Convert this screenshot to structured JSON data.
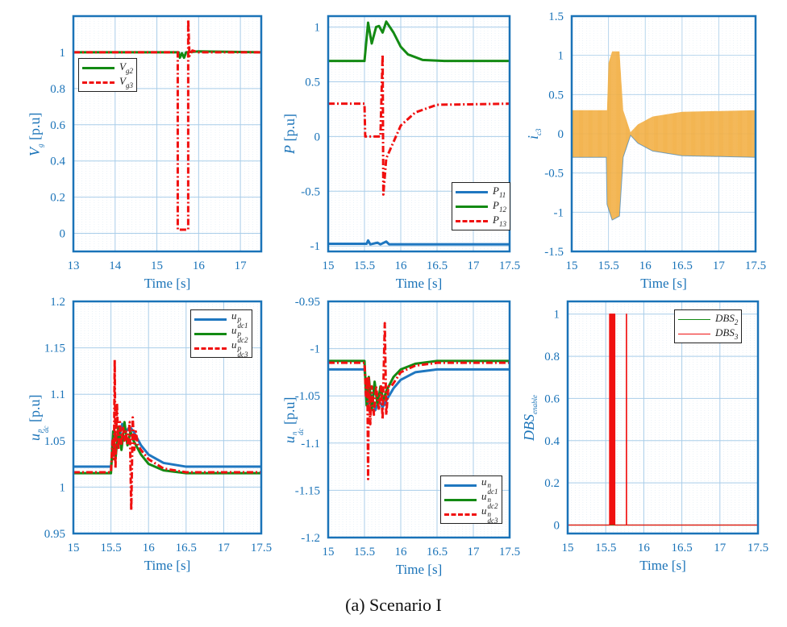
{
  "caption": "(a) Scenario I",
  "colors": {
    "axis": "#1a73b8",
    "grid": "#a9cde9",
    "blue": "#1f77c0",
    "green": "#138a13",
    "red": "#f01010",
    "orange": "#f0a020"
  },
  "chart_data": [
    {
      "type": "line",
      "xlabel": "Time [s]",
      "ylabel": {
        "base": "V",
        "sub": "g",
        "sup": "",
        "unit": " [p.u]"
      },
      "xlim": [
        13,
        17.5
      ],
      "ylim": [
        -0.1,
        1.2
      ],
      "xticks": [
        13,
        14,
        15,
        16,
        17
      ],
      "yticks": [
        0,
        0.2,
        0.4,
        0.6,
        0.8,
        1
      ],
      "grid": true,
      "legend": "upper-left",
      "series": [
        {
          "name": "V",
          "sub": "g2",
          "sup": "",
          "color": "#138a13",
          "style": "solid",
          "points": [
            [
              13,
              1
            ],
            [
              15.52,
              1
            ],
            [
              15.55,
              0.97
            ],
            [
              15.6,
              0.995
            ],
            [
              15.65,
              0.97
            ],
            [
              15.7,
              1
            ],
            [
              16,
              1.005
            ],
            [
              17.5,
              1
            ]
          ]
        },
        {
          "name": "V",
          "sub": "g3",
          "sup": "",
          "color": "#f01010",
          "style": "dashdot",
          "points": [
            [
              13,
              1
            ],
            [
              15.5,
              1
            ],
            [
              15.5,
              0.02
            ],
            [
              15.75,
              0.02
            ],
            [
              15.75,
              1.18
            ],
            [
              15.78,
              0.98
            ],
            [
              15.85,
              1.01
            ],
            [
              16,
              1
            ],
            [
              17.5,
              1
            ]
          ]
        }
      ]
    },
    {
      "type": "line",
      "xlabel": "Time [s]",
      "ylabel": {
        "base": "P",
        "sub": "",
        "sup": "",
        "unit": " [p.u]"
      },
      "xlim": [
        15,
        17.5
      ],
      "ylim": [
        -1.05,
        1.1
      ],
      "xticks": [
        15,
        15.5,
        16,
        16.5,
        17,
        17.5
      ],
      "yticks": [
        -1,
        -0.5,
        0,
        0.5,
        1
      ],
      "grid": true,
      "legend": "lower-right",
      "series": [
        {
          "name": "P",
          "sub": "11",
          "sup": "",
          "color": "#1f77c0",
          "style": "solid",
          "points": [
            [
              15,
              -0.98
            ],
            [
              15.53,
              -0.98
            ],
            [
              15.55,
              -0.95
            ],
            [
              15.58,
              -0.985
            ],
            [
              15.68,
              -0.97
            ],
            [
              15.72,
              -0.985
            ],
            [
              15.8,
              -0.96
            ],
            [
              15.84,
              -0.985
            ],
            [
              16,
              -0.985
            ],
            [
              17.5,
              -0.985
            ]
          ]
        },
        {
          "name": "P",
          "sub": "12",
          "sup": "",
          "color": "#138a13",
          "style": "solid",
          "points": [
            [
              15,
              0.69
            ],
            [
              15.5,
              0.69
            ],
            [
              15.55,
              1.04
            ],
            [
              15.6,
              0.85
            ],
            [
              15.66,
              1.0
            ],
            [
              15.7,
              1.01
            ],
            [
              15.75,
              0.95
            ],
            [
              15.8,
              1.05
            ],
            [
              15.9,
              0.95
            ],
            [
              16,
              0.82
            ],
            [
              16.1,
              0.75
            ],
            [
              16.3,
              0.7
            ],
            [
              16.6,
              0.69
            ],
            [
              17.5,
              0.69
            ]
          ]
        },
        {
          "name": "P",
          "sub": "13",
          "sup": "",
          "color": "#f01010",
          "style": "dashdot",
          "points": [
            [
              15,
              0.3
            ],
            [
              15.5,
              0.3
            ],
            [
              15.51,
              0
            ],
            [
              15.72,
              0
            ],
            [
              15.75,
              0.75
            ],
            [
              15.76,
              -0.53
            ],
            [
              15.8,
              -0.2
            ],
            [
              15.9,
              -0.05
            ],
            [
              16,
              0.1
            ],
            [
              16.2,
              0.22
            ],
            [
              16.5,
              0.29
            ],
            [
              17.5,
              0.3
            ]
          ]
        }
      ]
    },
    {
      "type": "area",
      "xlabel": "Time [s]",
      "ylabel": {
        "base": "i",
        "sub": "c3",
        "sup": "",
        "unit": ""
      },
      "xlim": [
        15,
        17.5
      ],
      "ylim": [
        -1.5,
        1.5
      ],
      "xticks": [
        15,
        15.5,
        16,
        16.5,
        17,
        17.5
      ],
      "yticks": [
        -1.5,
        -1,
        -0.5,
        0,
        0.5,
        1,
        1.5
      ],
      "grid": true,
      "legend": "none",
      "envelope": {
        "color": "#f0a020",
        "edge": "#1f77c0",
        "upper": [
          [
            15,
            0.3
          ],
          [
            15.48,
            0.3
          ],
          [
            15.5,
            0.9
          ],
          [
            15.55,
            1.05
          ],
          [
            15.65,
            1.05
          ],
          [
            15.7,
            0.3
          ],
          [
            15.8,
            0.02
          ],
          [
            15.9,
            0.12
          ],
          [
            16.1,
            0.22
          ],
          [
            16.5,
            0.28
          ],
          [
            17.5,
            0.3
          ]
        ],
        "lower": [
          [
            15,
            -0.3
          ],
          [
            15.47,
            -0.3
          ],
          [
            15.48,
            -0.9
          ],
          [
            15.55,
            -1.1
          ],
          [
            15.65,
            -1.05
          ],
          [
            15.7,
            -0.3
          ],
          [
            15.8,
            -0.02
          ],
          [
            15.9,
            -0.12
          ],
          [
            16.1,
            -0.22
          ],
          [
            16.5,
            -0.28
          ],
          [
            17.5,
            -0.3
          ]
        ]
      }
    },
    {
      "type": "line",
      "xlabel": "Time [s]",
      "ylabel": {
        "base": "u",
        "sub": "dc",
        "sup": "p",
        "unit": " [p.u]"
      },
      "xlim": [
        15,
        17.5
      ],
      "ylim": [
        0.95,
        1.2
      ],
      "xticks": [
        15,
        15.5,
        16,
        16.5,
        17,
        17.5
      ],
      "yticks": [
        0.95,
        1,
        1.05,
        1.1,
        1.15,
        1.2
      ],
      "grid": true,
      "legend": "upper-right",
      "series": [
        {
          "name": "u",
          "sub": "dc1",
          "sup": "p",
          "color": "#1f77c0",
          "style": "solid",
          "points": [
            [
              15,
              1.022
            ],
            [
              15.5,
              1.022
            ],
            [
              15.55,
              1.055
            ],
            [
              15.6,
              1.05
            ],
            [
              15.65,
              1.068
            ],
            [
              15.7,
              1.06
            ],
            [
              15.75,
              1.065
            ],
            [
              15.8,
              1.06
            ],
            [
              15.9,
              1.045
            ],
            [
              16,
              1.035
            ],
            [
              16.2,
              1.026
            ],
            [
              16.5,
              1.022
            ],
            [
              17.5,
              1.022
            ]
          ]
        },
        {
          "name": "u",
          "sub": "dc2",
          "sup": "p",
          "color": "#138a13",
          "style": "solid",
          "points": [
            [
              15,
              1.015
            ],
            [
              15.5,
              1.015
            ],
            [
              15.53,
              1.06
            ],
            [
              15.56,
              1.03
            ],
            [
              15.6,
              1.065
            ],
            [
              15.64,
              1.04
            ],
            [
              15.68,
              1.07
            ],
            [
              15.72,
              1.045
            ],
            [
              15.76,
              1.06
            ],
            [
              15.8,
              1.05
            ],
            [
              15.9,
              1.035
            ],
            [
              16,
              1.025
            ],
            [
              16.2,
              1.018
            ],
            [
              16.5,
              1.015
            ],
            [
              17.5,
              1.015
            ]
          ]
        },
        {
          "name": "u",
          "sub": "dc3",
          "sup": "p",
          "color": "#f01010",
          "style": "dashdot",
          "points": [
            [
              15,
              1.016
            ],
            [
              15.5,
              1.016
            ],
            [
              15.52,
              1.05
            ],
            [
              15.54,
              1.03
            ],
            [
              15.55,
              1.137
            ],
            [
              15.56,
              1.02
            ],
            [
              15.58,
              1.09
            ],
            [
              15.6,
              1.04
            ],
            [
              15.62,
              1.07
            ],
            [
              15.64,
              1.045
            ],
            [
              15.66,
              1.065
            ],
            [
              15.68,
              1.05
            ],
            [
              15.7,
              1.06
            ],
            [
              15.72,
              1.045
            ],
            [
              15.75,
              1.07
            ],
            [
              15.77,
              0.975
            ],
            [
              15.79,
              1.075
            ],
            [
              15.81,
              1.04
            ],
            [
              15.83,
              1.06
            ],
            [
              15.86,
              1.045
            ],
            [
              15.9,
              1.04
            ],
            [
              16,
              1.03
            ],
            [
              16.2,
              1.02
            ],
            [
              16.5,
              1.016
            ],
            [
              17.5,
              1.016
            ]
          ]
        }
      ]
    },
    {
      "type": "line",
      "xlabel": "Time [s]",
      "ylabel": {
        "base": "u",
        "sub": "dc",
        "sup": "n",
        "unit": " [p.u]"
      },
      "xlim": [
        15,
        17.5
      ],
      "ylim": [
        -1.2,
        -0.95
      ],
      "xticks": [
        15,
        15.5,
        16,
        16.5,
        17,
        17.5
      ],
      "yticks": [
        -1.2,
        -1.15,
        -1.1,
        -1.05,
        -1,
        -0.95
      ],
      "grid": true,
      "legend": "lower-right",
      "series": [
        {
          "name": "u",
          "sub": "dc1",
          "sup": "n",
          "color": "#1f77c0",
          "style": "solid",
          "points": [
            [
              15,
              -1.022
            ],
            [
              15.5,
              -1.022
            ],
            [
              15.55,
              -1.06
            ],
            [
              15.6,
              -1.05
            ],
            [
              15.65,
              -1.065
            ],
            [
              15.7,
              -1.055
            ],
            [
              15.75,
              -1.062
            ],
            [
              15.8,
              -1.055
            ],
            [
              15.9,
              -1.042
            ],
            [
              16,
              -1.033
            ],
            [
              16.2,
              -1.025
            ],
            [
              16.5,
              -1.022
            ],
            [
              17.5,
              -1.022
            ]
          ]
        },
        {
          "name": "u",
          "sub": "dc2",
          "sup": "n",
          "color": "#138a13",
          "style": "solid",
          "points": [
            [
              15,
              -1.013
            ],
            [
              15.5,
              -1.013
            ],
            [
              15.53,
              -1.06
            ],
            [
              15.56,
              -1.03
            ],
            [
              15.6,
              -1.065
            ],
            [
              15.64,
              -1.035
            ],
            [
              15.68,
              -1.06
            ],
            [
              15.72,
              -1.04
            ],
            [
              15.76,
              -1.055
            ],
            [
              15.8,
              -1.045
            ],
            [
              15.9,
              -1.03
            ],
            [
              16,
              -1.022
            ],
            [
              16.2,
              -1.016
            ],
            [
              16.5,
              -1.013
            ],
            [
              17.5,
              -1.013
            ]
          ]
        },
        {
          "name": "u",
          "sub": "dc3",
          "sup": "n",
          "color": "#f01010",
          "style": "dashdot",
          "points": [
            [
              15,
              -1.015
            ],
            [
              15.5,
              -1.015
            ],
            [
              15.52,
              -1.05
            ],
            [
              15.54,
              -1.03
            ],
            [
              15.55,
              -1.138
            ],
            [
              15.56,
              -1.03
            ],
            [
              15.58,
              -1.08
            ],
            [
              15.6,
              -1.04
            ],
            [
              15.63,
              -1.07
            ],
            [
              15.66,
              -1.04
            ],
            [
              15.7,
              -1.065
            ],
            [
              15.73,
              -1.04
            ],
            [
              15.75,
              -1.075
            ],
            [
              15.78,
              -0.973
            ],
            [
              15.8,
              -1.07
            ],
            [
              15.83,
              -1.04
            ],
            [
              15.87,
              -1.04
            ],
            [
              16,
              -1.025
            ],
            [
              16.2,
              -1.018
            ],
            [
              16.5,
              -1.015
            ],
            [
              17.5,
              -1.015
            ]
          ]
        }
      ]
    },
    {
      "type": "line",
      "xlabel": "Time [s]",
      "ylabel": {
        "base": "DBS",
        "sub": "enable",
        "sup": "",
        "unit": ""
      },
      "xlim": [
        15,
        17.5
      ],
      "ylim": [
        -0.04,
        1.06
      ],
      "xticks": [
        15,
        15.5,
        16,
        16.5,
        17,
        17.5
      ],
      "yticks": [
        0,
        0.2,
        0.4,
        0.6,
        0.8,
        1
      ],
      "grid": true,
      "legend": "upper-right",
      "series": [
        {
          "name": "DBS",
          "sub": "2",
          "sup": "",
          "color": "#138a13",
          "style": "thin",
          "points": [
            [
              15,
              0
            ],
            [
              17.5,
              0
            ]
          ]
        },
        {
          "name": "DBS",
          "sub": "3",
          "sup": "",
          "color": "#f01010",
          "style": "thin",
          "points": [
            [
              15,
              0
            ],
            [
              15.55,
              0
            ],
            [
              15.55,
              1
            ],
            [
              15.62,
              1
            ],
            [
              15.62,
              0
            ],
            [
              15.77,
              0
            ],
            [
              15.77,
              1
            ],
            [
              15.775,
              1
            ],
            [
              15.775,
              0
            ],
            [
              17.5,
              0
            ]
          ],
          "fill": [
            [
              15.55,
              15.62
            ]
          ]
        }
      ]
    }
  ]
}
